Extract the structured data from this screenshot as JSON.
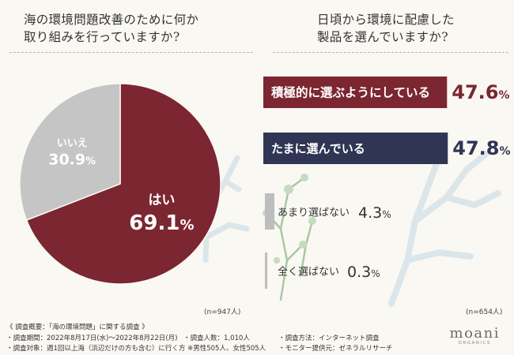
{
  "colors": {
    "yes": "#7b2631",
    "no": "#c5c5c5",
    "navy": "#2f3553",
    "gray_bar": "#bdbdbd",
    "coral": "#dbe6ea",
    "plant": "#9fbf9a"
  },
  "left": {
    "title_line1": "海の環境問題改善のために何か",
    "title_line2": "取り組みを行っていますか?",
    "n_label": "(n=947人)"
  },
  "right": {
    "title_line1": "日頃から環境に配慮した",
    "title_line2": "製品を選んでいますか?",
    "n_label": "(n=654人)"
  },
  "chart_data": [
    {
      "type": "pie",
      "categories": [
        "はい",
        "いいえ"
      ],
      "values": [
        69.1,
        30.9
      ],
      "value_labels": [
        "69.1%",
        "30.9%"
      ]
    },
    {
      "type": "bar",
      "orientation": "horizontal",
      "categories": [
        "積極的に選ぶようにしている",
        "たまに選んでいる",
        "あまり選ばない",
        "全く選ばない"
      ],
      "values": [
        47.6,
        47.8,
        4.3,
        0.3
      ],
      "value_labels": [
        "47.6%",
        "47.8%",
        "4.3%",
        "0.3%"
      ]
    }
  ],
  "footer": {
    "line1": "《 調査概要：「海の環境問題」に関する調査 》",
    "period": "・調査期間：2022年8月17日(水)～2022年8月22日(月)",
    "people": "・調査人数：1,010人",
    "method": "・調査方法：インターネット調査",
    "target": "・調査対象：週1回以上海（浜辺だけの方も含む）に行く方 ※男性505人、女性505人",
    "monitor": "・モニター提供元：ゼネラルリサーチ",
    "brand_name": "moani",
    "brand_sub": "ORGANICS"
  }
}
